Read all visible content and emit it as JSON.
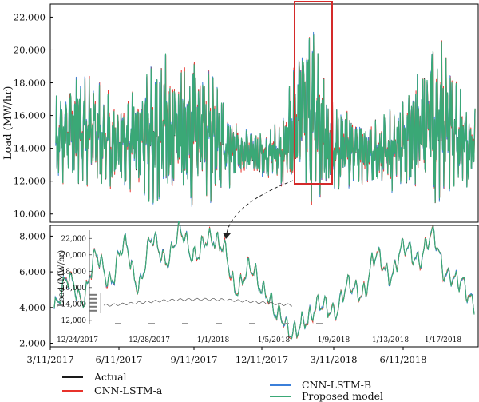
{
  "colors": {
    "actual": "#1a1a1a",
    "cnn_lstm_a": "#e8322b",
    "cnn_lstm_b": "#3b7fd9",
    "proposed": "#3aa876",
    "highlight_box": "#d42a2a"
  },
  "chart_data": [
    {
      "type": "line",
      "ylabel": "Load (MW/hr)",
      "yticks": [
        "10,000",
        "12,000",
        "14,000",
        "16,000",
        "18,000",
        "20,000",
        "22,000"
      ],
      "ylim": [
        9500,
        22800
      ],
      "xticks": [
        "3/11/2017",
        "6/11/2017",
        "9/11/2017",
        "12/11/2017",
        "3/11/2018",
        "6/11/2018"
      ],
      "series": [
        {
          "name": "Actual"
        },
        {
          "name": "CNN-LSTM-a"
        },
        {
          "name": "CNN-LSTM-B"
        },
        {
          "name": "Proposed model"
        }
      ],
      "annotation": "zoom window 12/24/2017 – 1/19/2018"
    },
    {
      "type": "line",
      "ylabel": "",
      "yticks": [
        "2,000",
        "4,000",
        "6,000",
        "8,000"
      ],
      "ylim": [
        1800,
        8600
      ],
      "xticks": [
        "12/24/2017",
        "12/28/2017",
        "1/1/2018",
        "1/5/2018",
        "1/9/2018",
        "1/13/2018",
        "1/17/2018"
      ],
      "values_approx": [
        4000,
        5700,
        4400,
        6900,
        5400,
        7600,
        5200,
        7900,
        6600,
        8300,
        6800,
        7900,
        7500,
        5000,
        6300,
        4900,
        3600,
        2600,
        3300,
        4200,
        3700,
        5300,
        4700,
        7000,
        5700,
        7500,
        6600,
        8100,
        5800,
        5500,
        4200
      ]
    },
    {
      "type": "line",
      "ylabel": "Load (MW/hr)",
      "yticks": [
        "12,000",
        "14,000",
        "16,000",
        "18,000",
        "20,000",
        "22,000"
      ],
      "ylim": [
        11500,
        23000
      ]
    }
  ],
  "legend": {
    "actual": "Actual",
    "cnn_lstm_a": "CNN-LSTM-a",
    "cnn_lstm_b": "CNN-LSTM-B",
    "proposed": "Proposed model"
  }
}
